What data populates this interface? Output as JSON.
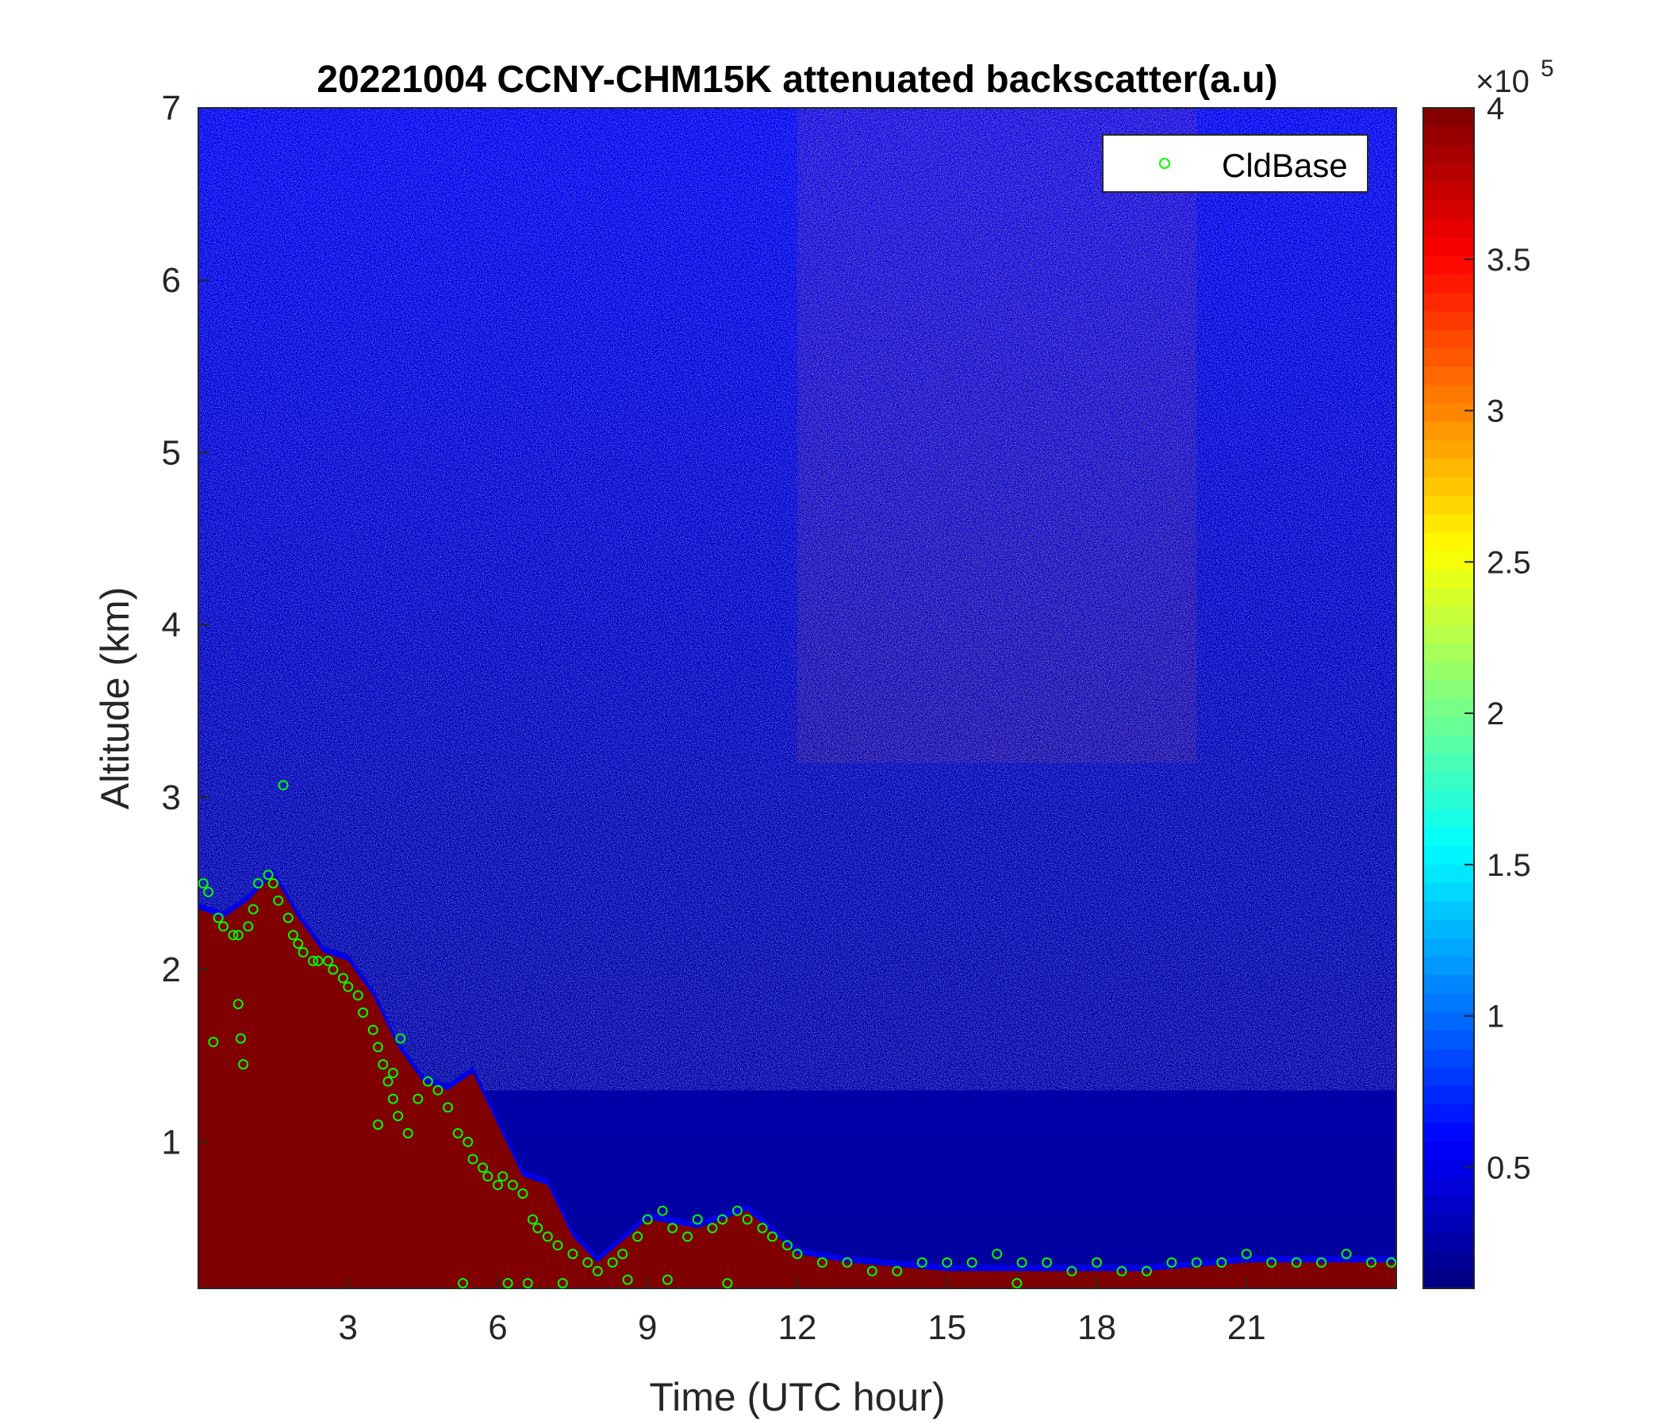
{
  "chart_data": {
    "type": "heatmap",
    "title": "20221004 CCNY-CHM15K attenuated backscatter(a.u)",
    "xlabel": "Time (UTC hour)",
    "ylabel": "Altitude (km)",
    "xlim": [
      0,
      24
    ],
    "ylim": [
      0.15,
      7
    ],
    "xticks": [
      3,
      6,
      9,
      12,
      15,
      18,
      21
    ],
    "yticks": [
      1,
      2,
      3,
      4,
      5,
      6,
      7
    ],
    "colormap": "jet",
    "colorbar": {
      "range": [
        0.1,
        4
      ],
      "ticks": [
        0.5,
        1,
        1.5,
        2,
        2.5,
        3,
        3.5,
        4
      ],
      "exponent_label": "×10",
      "exponent": "5"
    },
    "legend": {
      "position": "top-right",
      "entries": [
        {
          "label": "CldBase",
          "marker": "circle",
          "color": "#00ff00"
        }
      ]
    },
    "saturated_layer_top_km": {
      "time_utc": [
        0,
        0.5,
        1.0,
        1.5,
        2.0,
        2.5,
        3.0,
        3.5,
        4.0,
        4.5,
        5.0,
        5.5,
        6.0,
        6.5,
        7.0,
        7.5,
        8.0,
        9.0,
        10.0,
        11.0,
        12.0,
        13.0,
        15.0,
        17.0,
        19.0,
        21.0,
        23.0,
        24.0
      ],
      "altitude_km": [
        2.35,
        2.3,
        2.4,
        2.55,
        2.3,
        2.1,
        2.05,
        1.85,
        1.55,
        1.35,
        1.3,
        1.4,
        1.1,
        0.8,
        0.75,
        0.45,
        0.3,
        0.55,
        0.5,
        0.6,
        0.35,
        0.3,
        0.25,
        0.25,
        0.25,
        0.3,
        0.3,
        0.3
      ]
    },
    "enhanced_signal_band_hours": [
      12,
      20
    ],
    "series": [
      {
        "name": "CldBase",
        "type": "scatter",
        "x": [
          0.1,
          0.2,
          0.4,
          0.5,
          0.7,
          0.8,
          1.0,
          1.1,
          1.2,
          1.4,
          1.5,
          1.6,
          1.8,
          1.9,
          2.0,
          2.1,
          2.3,
          2.4,
          2.6,
          2.7,
          2.9,
          3.0,
          3.2,
          3.3,
          3.5,
          3.6,
          3.7,
          3.8,
          3.9,
          4.0,
          4.2,
          4.4,
          4.6,
          4.8,
          5.0,
          5.2,
          5.4,
          5.5,
          5.7,
          5.8,
          6.0,
          6.1,
          6.3,
          6.5,
          6.7,
          6.8,
          7.0,
          7.2,
          7.5,
          7.8,
          8.0,
          8.3,
          8.5,
          8.8,
          9.0,
          9.3,
          9.5,
          9.8,
          10.0,
          10.3,
          10.5,
          10.8,
          11.0,
          11.3,
          11.5,
          11.8,
          12.0,
          12.5,
          13.0,
          13.5,
          14.0,
          14.5,
          15.0,
          15.5,
          16.0,
          16.5,
          17.0,
          17.5,
          18.0,
          18.5,
          19.0,
          19.5,
          20.0,
          20.5,
          21.0,
          21.5,
          22.0,
          22.5,
          23.0,
          23.5,
          23.9,
          0.8,
          0.85,
          0.9,
          0.3,
          1.7,
          3.6,
          3.9,
          4.05,
          5.3,
          6.2,
          6.6,
          7.3,
          8.6,
          9.4,
          10.6,
          16.4
        ],
        "y": [
          2.5,
          2.45,
          2.3,
          2.25,
          2.2,
          2.2,
          2.25,
          2.35,
          2.5,
          2.55,
          2.5,
          2.4,
          2.3,
          2.2,
          2.15,
          2.1,
          2.05,
          2.05,
          2.05,
          2.0,
          1.95,
          1.9,
          1.85,
          1.75,
          1.65,
          1.55,
          1.45,
          1.35,
          1.25,
          1.15,
          1.05,
          1.25,
          1.35,
          1.3,
          1.2,
          1.05,
          1.0,
          0.9,
          0.85,
          0.8,
          0.75,
          0.8,
          0.75,
          0.7,
          0.55,
          0.5,
          0.45,
          0.4,
          0.35,
          0.3,
          0.25,
          0.3,
          0.35,
          0.45,
          0.55,
          0.6,
          0.5,
          0.45,
          0.55,
          0.5,
          0.55,
          0.6,
          0.55,
          0.5,
          0.45,
          0.4,
          0.35,
          0.3,
          0.3,
          0.25,
          0.25,
          0.3,
          0.3,
          0.3,
          0.35,
          0.3,
          0.3,
          0.25,
          0.3,
          0.25,
          0.25,
          0.3,
          0.3,
          0.3,
          0.35,
          0.3,
          0.3,
          0.3,
          0.35,
          0.3,
          0.3,
          1.8,
          1.6,
          1.45,
          1.58,
          3.07,
          1.1,
          1.4,
          1.6,
          0.18,
          0.18,
          0.18,
          0.18,
          0.2,
          0.2,
          0.18,
          0.18
        ]
      }
    ]
  }
}
